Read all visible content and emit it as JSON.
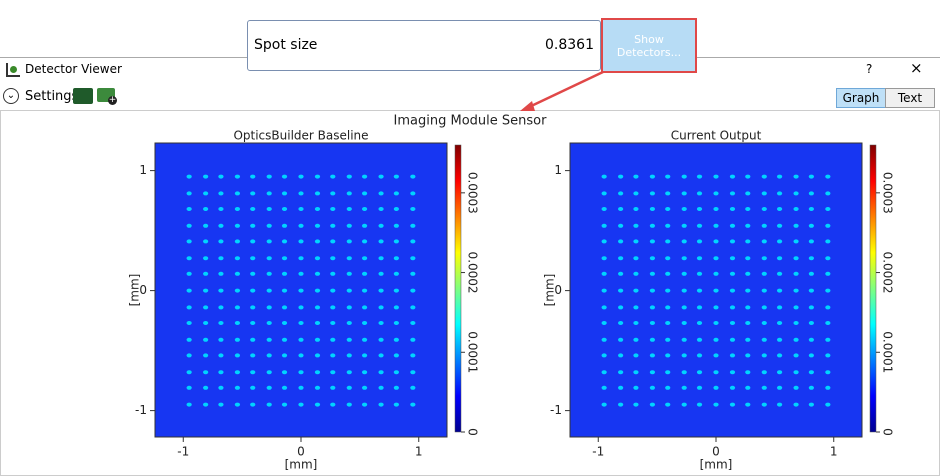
{
  "spot_size": {
    "label": "Spot size",
    "value": "0.8361",
    "button": "Show Detectors..."
  },
  "window": {
    "title": "Detector Viewer",
    "help": "?",
    "close": "×",
    "settings": "Settings",
    "tabs": [
      "Graph",
      "Text"
    ]
  },
  "figure_title": "Imaging Module Sensor",
  "chart_data": [
    {
      "type": "heatmap",
      "title": "OpticsBuilder Baseline",
      "xlabel": "[mm]",
      "ylabel": "[mm]",
      "xlim": [
        -1.24,
        1.24
      ],
      "ylim": [
        -1.22,
        1.23
      ],
      "xticks": [
        -1,
        0,
        1
      ],
      "yticks": [
        -1,
        0,
        1
      ],
      "x": [
        -0.95,
        -0.81,
        -0.68,
        -0.54,
        -0.41,
        -0.27,
        -0.14,
        0,
        0.14,
        0.27,
        0.41,
        0.54,
        0.68,
        0.81,
        0.95
      ],
      "y": [
        -0.95,
        -0.81,
        -0.68,
        -0.54,
        -0.41,
        -0.27,
        -0.14,
        0,
        0.14,
        0.27,
        0.41,
        0.54,
        0.68,
        0.81,
        0.95
      ],
      "spot_value": 0.00012,
      "colorbar_lim": [
        0,
        0.00036
      ],
      "colorbar_ticks": [
        0,
        0.0001,
        0.0002,
        0.0003
      ]
    },
    {
      "type": "heatmap",
      "title": "Current Output",
      "xlabel": "[mm]",
      "ylabel": "[mm]",
      "xlim": [
        -1.24,
        1.24
      ],
      "ylim": [
        -1.22,
        1.23
      ],
      "xticks": [
        -1,
        0,
        1
      ],
      "yticks": [
        -1,
        0,
        1
      ],
      "x": [
        -0.95,
        -0.81,
        -0.68,
        -0.54,
        -0.41,
        -0.27,
        -0.14,
        0,
        0.14,
        0.27,
        0.41,
        0.54,
        0.68,
        0.81,
        0.95
      ],
      "y": [
        -0.95,
        -0.81,
        -0.68,
        -0.54,
        -0.41,
        -0.27,
        -0.14,
        0,
        0.14,
        0.27,
        0.41,
        0.54,
        0.68,
        0.81,
        0.95
      ],
      "spot_value": 0.00012,
      "colorbar_lim": [
        0,
        0.00036
      ],
      "colorbar_ticks": [
        0,
        0.0001,
        0.0002,
        0.0003
      ]
    }
  ]
}
